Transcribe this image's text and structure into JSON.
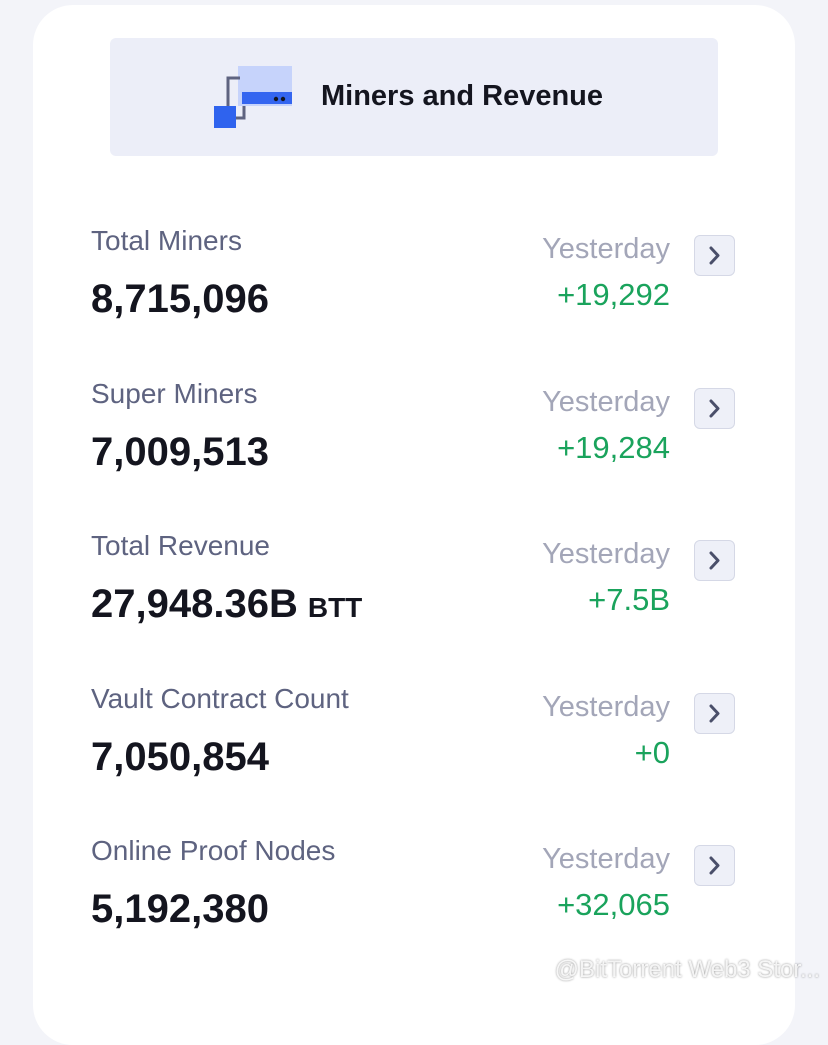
{
  "header": {
    "title": "Miners and Revenue"
  },
  "rows": [
    {
      "label": "Total Miners",
      "value": "8,715,096",
      "period": "Yesterday",
      "change": "+19,292"
    },
    {
      "label": "Super Miners",
      "value": "7,009,513",
      "period": "Yesterday",
      "change": "+19,284"
    },
    {
      "label": "Total Revenue",
      "value": "27,948.36B",
      "unit": "BTT",
      "period": "Yesterday",
      "change": "+7.5B"
    },
    {
      "label": "Vault Contract Count",
      "value": "7,050,854",
      "period": "Yesterday",
      "change": "+0"
    },
    {
      "label": "Online Proof Nodes",
      "value": "5,192,380",
      "period": "Yesterday",
      "change": "+32,065"
    }
  ],
  "watermark": "@BitTorrent Web3 Stor..."
}
